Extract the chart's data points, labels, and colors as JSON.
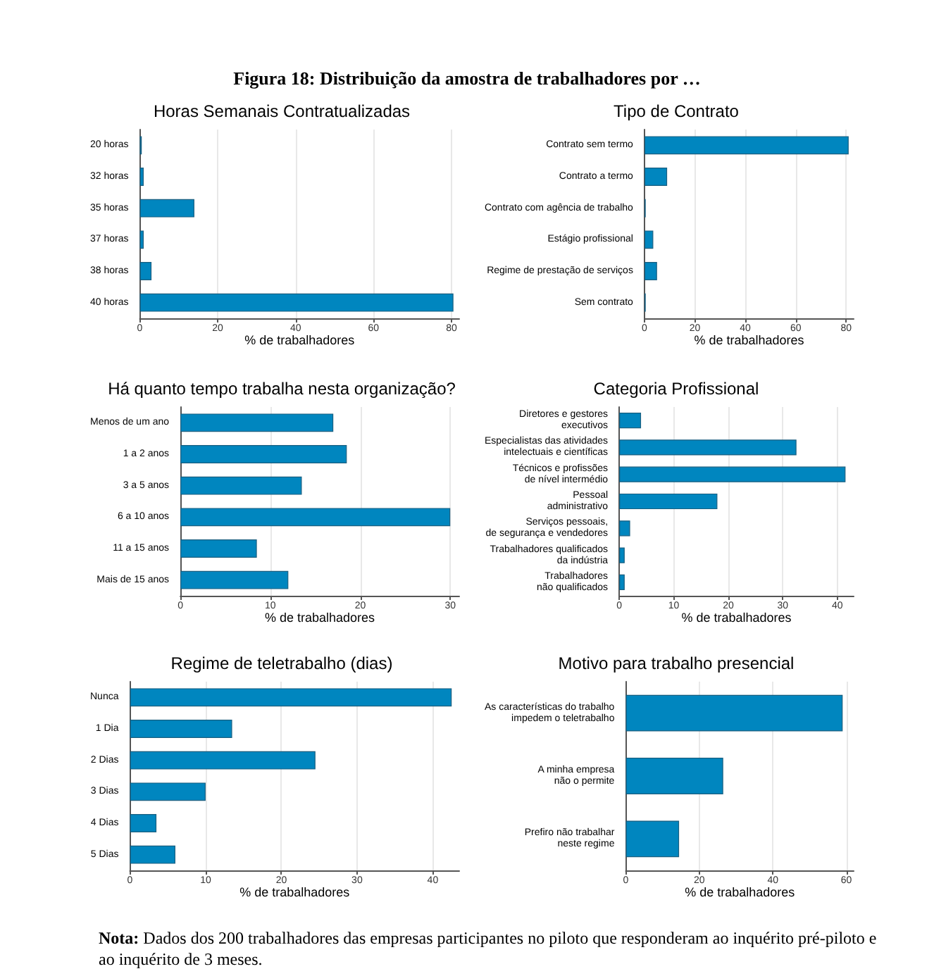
{
  "chart_data": [
    {
      "type": "bar",
      "orientation": "horizontal",
      "title": "Horas Semanais Contratualizadas",
      "xlabel": "% de trabalhadores",
      "categories": [
        "20 horas",
        "32 horas",
        "35 horas",
        "37 horas",
        "38 horas",
        "40 horas"
      ],
      "values": [
        0.5,
        1,
        14,
        1,
        3,
        80.5
      ],
      "color": "#0086bf",
      "xlim": [
        0,
        82
      ],
      "xticks": [
        0,
        20,
        40,
        60,
        80
      ],
      "grid": "x",
      "annotations": [
        "Figura 18: Distribuição da amostra de trabalhadores por …"
      ]
    },
    {
      "type": "bar",
      "orientation": "horizontal",
      "title": "Tipo de Contrato",
      "xlabel": "% de trabalhadores",
      "categories": [
        "Contrato sem termo",
        "Contrato a termo",
        "Contrato com agência de trabalho",
        "Estágio profissional",
        "Regime de prestação de serviços",
        "Sem contrato"
      ],
      "values": [
        81,
        9,
        0.5,
        3.5,
        5,
        0.5
      ],
      "color": "#0086bf",
      "xlim": [
        0,
        83
      ],
      "xticks": [
        0,
        20,
        40,
        60,
        80
      ],
      "grid": "x"
    },
    {
      "type": "bar",
      "orientation": "horizontal",
      "title": "Há quanto tempo trabalha nesta organização?",
      "xlabel": "% de trabalhadores",
      "categories": [
        "Menos de um ano",
        "1 a 2 anos",
        "3 a 5 anos",
        "6 a 10 anos",
        "11 a 15 anos",
        "Mais de 15 anos"
      ],
      "values": [
        17,
        18.5,
        13.5,
        30,
        8.5,
        12
      ],
      "color": "#0086bf",
      "xlim": [
        0,
        31
      ],
      "xticks": [
        0,
        10,
        20,
        30
      ],
      "grid": "x"
    },
    {
      "type": "bar",
      "orientation": "horizontal",
      "title": "Categoria Profissional",
      "xlabel": "% de trabalhadores",
      "categories": [
        "Diretores e gestores\nexecutivos",
        "Especialistas das atividades\nintelectuais e científicas",
        "Técnicos e profissões\nde nível intermédio",
        "Pessoal\nadministrativo",
        "Serviços pessoais,\nde segurança e vendedores",
        "Trabalhadores qualificados\nda indústria",
        "Trabalhadores\nnão qualificados"
      ],
      "values": [
        4,
        32.5,
        41.5,
        18,
        2,
        1,
        1
      ],
      "color": "#0086bf",
      "xlim": [
        0,
        43
      ],
      "xticks": [
        0,
        10,
        20,
        30,
        40
      ],
      "grid": "x"
    },
    {
      "type": "bar",
      "orientation": "horizontal",
      "title": "Regime de teletrabalho (dias)",
      "xlabel": "% de trabalhadores",
      "categories": [
        "Nunca",
        "1 Dia",
        "2 Dias",
        "3 Dias",
        "4 Dias",
        "5 Dias"
      ],
      "values": [
        42.5,
        13.5,
        24.5,
        10,
        3.5,
        6
      ],
      "color": "#0086bf",
      "xlim": [
        0,
        43.5
      ],
      "xticks": [
        0,
        10,
        20,
        30,
        40
      ],
      "grid": "x"
    },
    {
      "type": "bar",
      "orientation": "horizontal",
      "title": "Motivo para trabalho presencial",
      "xlabel": "% de trabalhadores",
      "categories": [
        "As características do trabalho\nimpedem o teletrabalho",
        "A minha empresa\nnão o permite",
        "Prefiro não trabalhar\nneste regime"
      ],
      "values": [
        59,
        26.5,
        14.5
      ],
      "color": "#0086bf",
      "xlim": [
        0,
        62
      ],
      "xticks": [
        0,
        20,
        40,
        60
      ],
      "grid": "x",
      "annotations": [
        "Nota: Dados dos 200 trabalhadores das empresas participantes no piloto que responderam ao inquérito pré-piloto e ao inquérito de 3 meses."
      ]
    }
  ]
}
